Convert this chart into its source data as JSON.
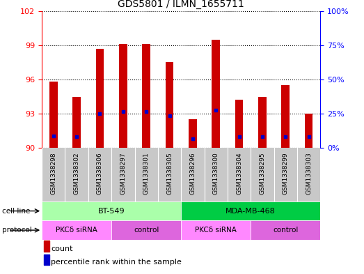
{
  "title": "GDS5801 / ILMN_1655711",
  "samples": [
    "GSM1338298",
    "GSM1338302",
    "GSM1338306",
    "GSM1338297",
    "GSM1338301",
    "GSM1338305",
    "GSM1338296",
    "GSM1338300",
    "GSM1338304",
    "GSM1338295",
    "GSM1338299",
    "GSM1338303"
  ],
  "bar_tops": [
    95.8,
    94.5,
    98.7,
    99.1,
    99.1,
    97.5,
    92.5,
    99.5,
    94.2,
    94.5,
    95.5,
    93.0
  ],
  "bar_base": 90.0,
  "percentile_values": [
    91.05,
    91.0,
    93.0,
    93.2,
    93.2,
    92.8,
    90.8,
    93.3,
    91.0,
    91.0,
    91.0,
    91.0
  ],
  "ylim_left": [
    90,
    102
  ],
  "yticks_left": [
    90,
    93,
    96,
    99,
    102
  ],
  "ylim_right": [
    0,
    100
  ],
  "yticks_right": [
    0,
    25,
    50,
    75,
    100
  ],
  "bar_color": "#cc0000",
  "dot_color": "#0000cc",
  "cell_line_groups": [
    {
      "label": "BT-549",
      "start": 0,
      "end": 6,
      "color": "#aaffaa"
    },
    {
      "label": "MDA-MB-468",
      "start": 6,
      "end": 12,
      "color": "#00cc44"
    }
  ],
  "protocol_groups": [
    {
      "label": "PKCδ siRNA",
      "start": 0,
      "end": 3,
      "color": "#ff88ff"
    },
    {
      "label": "control",
      "start": 3,
      "end": 6,
      "color": "#dd66dd"
    },
    {
      "label": "PKCδ siRNA",
      "start": 6,
      "end": 9,
      "color": "#ff88ff"
    },
    {
      "label": "control",
      "start": 9,
      "end": 12,
      "color": "#dd66dd"
    }
  ],
  "legend_count_color": "#cc0000",
  "legend_percentile_color": "#0000cc",
  "background_plot": "#ffffff",
  "background_sample": "#c8c8c8",
  "cell_line_label": "cell line",
  "protocol_label": "protocol"
}
